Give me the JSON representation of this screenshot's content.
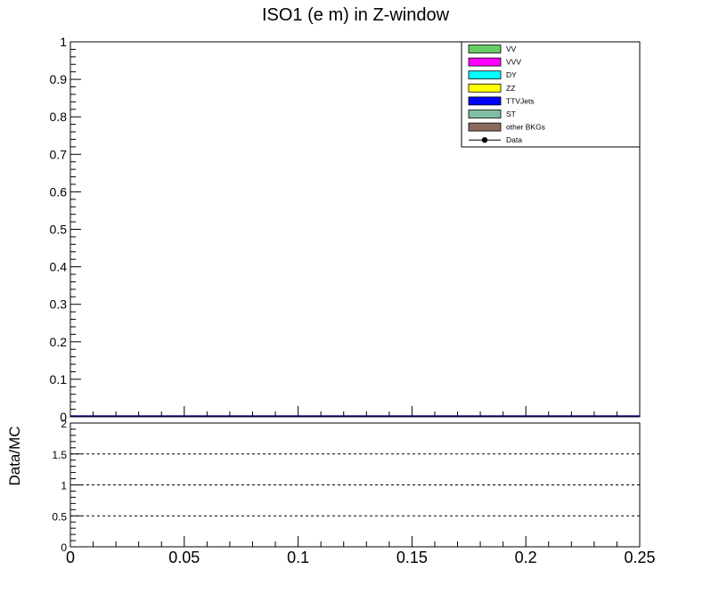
{
  "chart_data": [
    {
      "type": "bar",
      "title": "ISO1 (e m) in Z-window",
      "xlabel": "",
      "ylabel": "",
      "xlim": [
        0,
        0.25
      ],
      "ylim": [
        0,
        1
      ],
      "x_ticks": [
        "0",
        "0.05",
        "0.1",
        "0.15",
        "0.2",
        "0.25"
      ],
      "y_ticks": [
        "0",
        "0.1",
        "0.2",
        "0.3",
        "0.4",
        "0.5",
        "0.6",
        "0.7",
        "0.8",
        "0.9",
        "1"
      ],
      "legend_placement": "top-right",
      "series": [
        {
          "name": "VV",
          "color": "#66cc66",
          "values": []
        },
        {
          "name": "VVV",
          "color": "#ff00ff",
          "values": []
        },
        {
          "name": "DY",
          "color": "#00ffff",
          "values": []
        },
        {
          "name": "ZZ",
          "color": "#ffff00",
          "values": []
        },
        {
          "name": "TTVJets",
          "color": "#0000ff",
          "values": []
        },
        {
          "name": "ST",
          "color": "#7fbfa3",
          "values": []
        },
        {
          "name": "other BKGs",
          "color": "#8c6a5f",
          "values": []
        },
        {
          "name": "Data",
          "color": "#000000",
          "marker": "point",
          "values": []
        }
      ]
    },
    {
      "type": "line",
      "title": "",
      "xlabel": "",
      "ylabel": "Data/MC",
      "xlim": [
        0,
        0.25
      ],
      "ylim": [
        0,
        2
      ],
      "x_ticks": [
        "0",
        "0.05",
        "0.1",
        "0.15",
        "0.2",
        "0.25"
      ],
      "y_ticks": [
        "0",
        "0.5",
        "1",
        "1.5",
        "2"
      ],
      "reference_lines": [
        0.5,
        1,
        1.5
      ],
      "values": []
    }
  ]
}
